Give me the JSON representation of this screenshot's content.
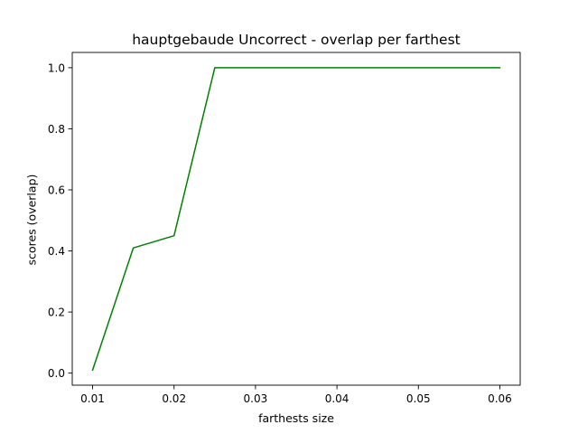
{
  "chart_data": {
    "type": "line",
    "title": "hauptgebaude Uncorrect - overlap per farthest",
    "xlabel": "farthests size",
    "ylabel": "scores (overlap)",
    "xlim": [
      0.0075,
      0.0625
    ],
    "ylim": [
      -0.0395,
      1.05
    ],
    "x_ticks": [
      0.01,
      0.02,
      0.03,
      0.04,
      0.05,
      0.06
    ],
    "x_tick_labels": [
      "0.01",
      "0.02",
      "0.03",
      "0.04",
      "0.05",
      "0.06"
    ],
    "y_ticks": [
      0.0,
      0.2,
      0.4,
      0.6,
      0.8,
      1.0
    ],
    "y_tick_labels": [
      "0.0",
      "0.2",
      "0.4",
      "0.6",
      "0.8",
      "1.0"
    ],
    "grid": false,
    "series": [
      {
        "color": "#008000",
        "x": [
          0.01,
          0.015,
          0.02,
          0.025,
          0.03,
          0.035,
          0.04,
          0.045,
          0.05,
          0.055,
          0.06
        ],
        "y": [
          0.01,
          0.41,
          0.45,
          1.0,
          1.0,
          1.0,
          1.0,
          1.0,
          1.0,
          1.0,
          1.0
        ]
      }
    ]
  }
}
